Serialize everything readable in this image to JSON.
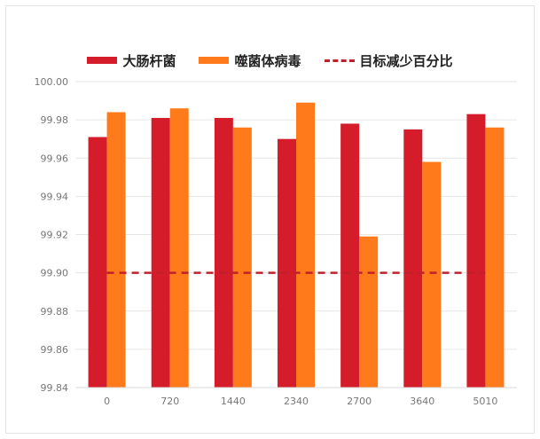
{
  "chart_data": {
    "type": "bar",
    "categories": [
      "0",
      "720",
      "1440",
      "2340",
      "2700",
      "3640",
      "5010"
    ],
    "series": [
      {
        "name": "大肠杆菌",
        "color": "#d41c2a",
        "values": [
          99.971,
          99.981,
          99.981,
          99.97,
          99.978,
          99.975,
          99.983
        ]
      },
      {
        "name": "噬菌体病毒",
        "color": "#ff7a1a",
        "values": [
          99.984,
          99.986,
          99.976,
          99.989,
          99.919,
          99.958,
          99.976
        ]
      }
    ],
    "target": {
      "name": "目标减少百分比",
      "value": 99.9,
      "color": "#c0202a"
    },
    "ylim": [
      99.84,
      100.0
    ],
    "yticks": [
      "99.84",
      "99.86",
      "99.88",
      "99.90",
      "99.92",
      "99.94",
      "99.96",
      "99.98",
      "100.00"
    ],
    "title": "",
    "xlabel": "",
    "ylabel": "",
    "legend_position": "top-center",
    "grid": true
  }
}
